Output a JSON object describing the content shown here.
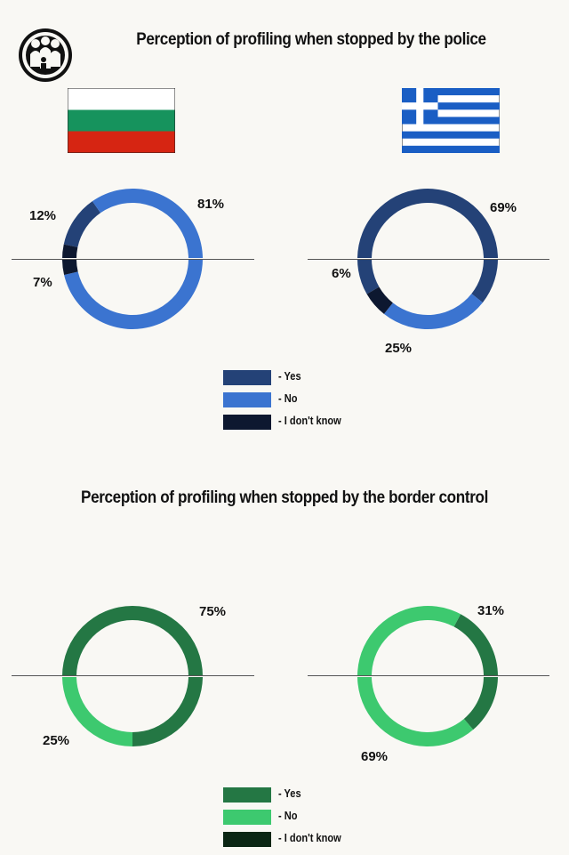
{
  "colors": {
    "background": "#f9f8f4",
    "police_yes": "#244277",
    "police_no": "#3b74d0",
    "police_dont_know": "#0d1830",
    "border_yes": "#247744",
    "border_no": "#3dc96f",
    "border_dont_know": "#0b2614",
    "divider": "#555555"
  },
  "logo": {
    "icon": "people-circle-logo-icon"
  },
  "flags": [
    {
      "icon": "bulgaria-flag-icon",
      "country": "Bulgaria"
    },
    {
      "icon": "greece-flag-icon",
      "country": "Greece"
    }
  ],
  "chart_data": [
    {
      "type": "pie",
      "title": "Perception of profiling when stopped by the police",
      "donut": true,
      "categories": [
        "- Yes",
        "- No",
        "- I don't know"
      ],
      "series": [
        {
          "values": [
            12,
            81,
            7
          ],
          "labels": [
            "12%",
            "81%",
            "7%"
          ]
        },
        {
          "values": [
            69,
            25,
            6
          ],
          "labels": [
            "69%",
            "25%",
            "6%"
          ]
        }
      ],
      "legend": {
        "position": "bottom-center",
        "entries": [
          "- Yes",
          "- No",
          "- I don't know"
        ]
      }
    },
    {
      "type": "pie",
      "title": "Perception of profiling when stopped by the border control",
      "donut": true,
      "categories": [
        "- Yes",
        "- No",
        "- I don't know"
      ],
      "series": [
        {
          "values": [
            75,
            25,
            0
          ],
          "labels": [
            "75%",
            "25%",
            ""
          ]
        },
        {
          "values": [
            31,
            69,
            0
          ],
          "labels": [
            "31%",
            "69%",
            ""
          ]
        }
      ],
      "legend": {
        "position": "bottom-center",
        "entries": [
          "- Yes",
          "- No",
          "- I don't know"
        ]
      }
    }
  ]
}
